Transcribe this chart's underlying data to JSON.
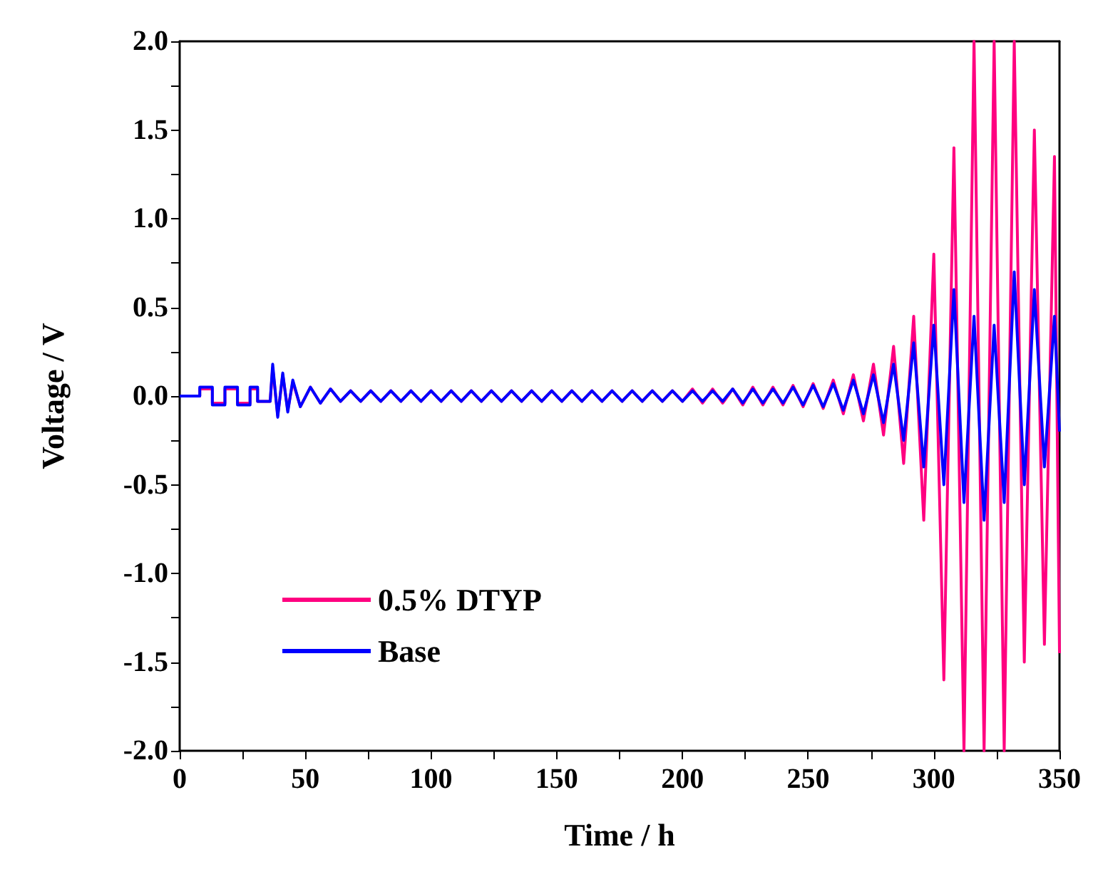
{
  "chart_data": {
    "type": "line",
    "xlabel": "Time / h",
    "ylabel": "Voltage / V",
    "xlim": [
      0,
      350
    ],
    "ylim": [
      -2,
      2
    ],
    "xticks": [
      0,
      {
        "value": 25,
        "label": null
      },
      50,
      {
        "value": 75,
        "label": null
      },
      100,
      {
        "value": 125,
        "label": null
      },
      150,
      {
        "value": 175,
        "label": null
      },
      200,
      {
        "value": 225,
        "label": null
      },
      250,
      {
        "value": 275,
        "label": null
      },
      300,
      {
        "value": 325,
        "label": null
      },
      350
    ],
    "yticks": [
      {
        "value": -2,
        "label": "-2.0"
      },
      {
        "value": -1.75,
        "label": null
      },
      {
        "value": -1.5,
        "label": "-1.5"
      },
      {
        "value": -1.25,
        "label": null
      },
      {
        "value": -1,
        "label": "-1.0"
      },
      {
        "value": -0.75,
        "label": null
      },
      {
        "value": -0.5,
        "label": "-0.5"
      },
      {
        "value": -0.25,
        "label": null
      },
      {
        "value": 0,
        "label": "0.0"
      },
      {
        "value": 0.25,
        "label": null
      },
      {
        "value": 0.5,
        "label": "0.5"
      },
      {
        "value": 0.75,
        "label": null
      },
      {
        "value": 1,
        "label": "1.0"
      },
      {
        "value": 1.25,
        "label": null
      },
      {
        "value": 1.5,
        "label": "1.5"
      },
      {
        "value": 1.75,
        "label": null
      },
      {
        "value": 2,
        "label": "2.0"
      }
    ],
    "grid": false,
    "legend": "bottom left",
    "marker": "none",
    "line_style": "solid",
    "series": [
      {
        "name": "0.5% DTYP",
        "color": "#ff0080",
        "x": [
          0,
          8,
          8,
          13,
          13,
          18,
          18,
          23,
          23,
          28,
          28,
          31,
          31,
          36,
          37,
          39,
          41,
          43,
          45,
          48,
          52,
          56,
          60,
          64,
          68,
          72,
          76,
          80,
          84,
          88,
          92,
          96,
          100,
          104,
          108,
          112,
          116,
          120,
          124,
          128,
          132,
          136,
          140,
          144,
          148,
          152,
          156,
          160,
          164,
          168,
          172,
          176,
          180,
          184,
          188,
          192,
          196,
          200,
          204,
          208,
          212,
          216,
          220,
          224,
          228,
          232,
          236,
          240,
          244,
          248,
          252,
          256,
          260,
          264,
          268,
          272,
          276,
          280,
          284,
          288,
          292,
          296,
          300,
          304,
          308,
          312,
          316,
          320,
          324,
          328,
          332,
          336,
          340,
          344,
          348,
          350
        ],
        "values": [
          0,
          0,
          0.04,
          0.04,
          -0.04,
          -0.04,
          0.04,
          0.04,
          -0.04,
          -0.04,
          0.04,
          0.04,
          -0.03,
          -0.03,
          0.16,
          -0.11,
          0.12,
          -0.08,
          0.08,
          -0.06,
          0.05,
          -0.04,
          0.04,
          -0.03,
          0.03,
          -0.03,
          0.03,
          -0.03,
          0.03,
          -0.03,
          0.03,
          -0.03,
          0.03,
          -0.03,
          0.03,
          -0.03,
          0.03,
          -0.03,
          0.03,
          -0.03,
          0.03,
          -0.03,
          0.03,
          -0.03,
          0.03,
          -0.03,
          0.03,
          -0.03,
          0.03,
          -0.03,
          0.03,
          -0.03,
          0.03,
          -0.03,
          0.03,
          -0.03,
          0.03,
          -0.03,
          0.04,
          -0.04,
          0.04,
          -0.04,
          0.04,
          -0.05,
          0.05,
          -0.05,
          0.05,
          -0.05,
          0.06,
          -0.06,
          0.07,
          -0.07,
          0.09,
          -0.1,
          0.12,
          -0.14,
          0.18,
          -0.22,
          0.28,
          -0.38,
          0.45,
          -0.7,
          0.8,
          -1.6,
          1.4,
          -2,
          2,
          -2,
          2,
          -2,
          2,
          -1.5,
          1.5,
          -1.4,
          1.35,
          -1.45
        ]
      },
      {
        "name": "Base",
        "color": "#0000ff",
        "x": [
          0,
          8,
          8,
          13,
          13,
          18,
          18,
          23,
          23,
          28,
          28,
          31,
          31,
          36,
          37,
          39,
          41,
          43,
          45,
          48,
          52,
          56,
          60,
          64,
          68,
          72,
          76,
          80,
          84,
          88,
          92,
          96,
          100,
          104,
          108,
          112,
          116,
          120,
          124,
          128,
          132,
          136,
          140,
          144,
          148,
          152,
          156,
          160,
          164,
          168,
          172,
          176,
          180,
          184,
          188,
          192,
          196,
          200,
          204,
          208,
          212,
          216,
          220,
          224,
          228,
          232,
          236,
          240,
          244,
          248,
          252,
          256,
          260,
          264,
          268,
          272,
          276,
          280,
          284,
          288,
          292,
          296,
          300,
          304,
          308,
          312,
          316,
          320,
          324,
          328,
          332,
          336,
          340,
          344,
          348,
          350
        ],
        "values": [
          0,
          0,
          0.05,
          0.05,
          -0.05,
          -0.05,
          0.05,
          0.05,
          -0.05,
          -0.05,
          0.05,
          0.05,
          -0.03,
          -0.03,
          0.18,
          -0.12,
          0.13,
          -0.09,
          0.09,
          -0.06,
          0.05,
          -0.04,
          0.04,
          -0.03,
          0.03,
          -0.03,
          0.03,
          -0.03,
          0.03,
          -0.03,
          0.03,
          -0.03,
          0.03,
          -0.03,
          0.03,
          -0.03,
          0.03,
          -0.03,
          0.03,
          -0.03,
          0.03,
          -0.03,
          0.03,
          -0.03,
          0.03,
          -0.03,
          0.03,
          -0.03,
          0.03,
          -0.03,
          0.03,
          -0.03,
          0.03,
          -0.03,
          0.03,
          -0.03,
          0.03,
          -0.03,
          0.03,
          -0.03,
          0.03,
          -0.03,
          0.04,
          -0.04,
          0.04,
          -0.04,
          0.04,
          -0.04,
          0.05,
          -0.05,
          0.06,
          -0.06,
          0.07,
          -0.08,
          0.09,
          -0.1,
          0.12,
          -0.15,
          0.18,
          -0.25,
          0.3,
          -0.4,
          0.4,
          -0.5,
          0.6,
          -0.6,
          0.45,
          -0.7,
          0.4,
          -0.6,
          0.7,
          -0.5,
          0.6,
          -0.4,
          0.45,
          -0.2
        ]
      }
    ]
  }
}
